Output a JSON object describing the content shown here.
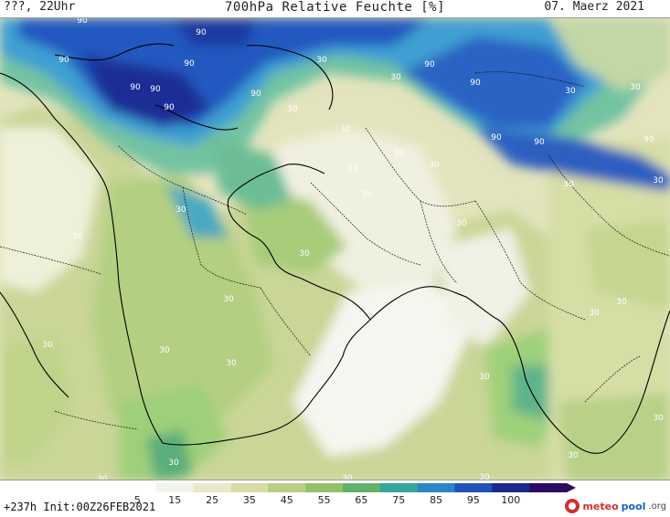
{
  "header": {
    "left": "???, 22Uhr",
    "center": "700hPa Relative Feuchte [%]",
    "right": "07. Maerz 2021"
  },
  "footer": {
    "lead": "+237h Init:00Z26FEB2021"
  },
  "colorbar": {
    "ticks": [
      "5",
      "15",
      "25",
      "35",
      "45",
      "55",
      "65",
      "75",
      "85",
      "95",
      "100"
    ],
    "colors": [
      "#ffffff",
      "#f2f2ee",
      "#e9e8cc",
      "#d7dca6",
      "#b8cf84",
      "#93c166",
      "#62b168",
      "#38a59a",
      "#2a86c8",
      "#2150b8",
      "#1a2a8c",
      "#2b0b63"
    ]
  },
  "map": {
    "labels": [
      "90",
      "90",
      "90",
      "90",
      "90",
      "90",
      "90",
      "90",
      "90",
      "90",
      "90",
      "90",
      "90",
      "30",
      "30",
      "30",
      "30",
      "30",
      "30",
      "30",
      "30",
      "30",
      "30",
      "30",
      "30",
      "30",
      "30",
      "30",
      "30",
      "30",
      "30",
      "30",
      "30",
      "30",
      "30",
      "30",
      "30",
      "30",
      "30",
      "30",
      "30",
      "30"
    ]
  },
  "logo": {
    "part1": "meteo",
    "part2": "pool",
    "part3": ".org"
  }
}
